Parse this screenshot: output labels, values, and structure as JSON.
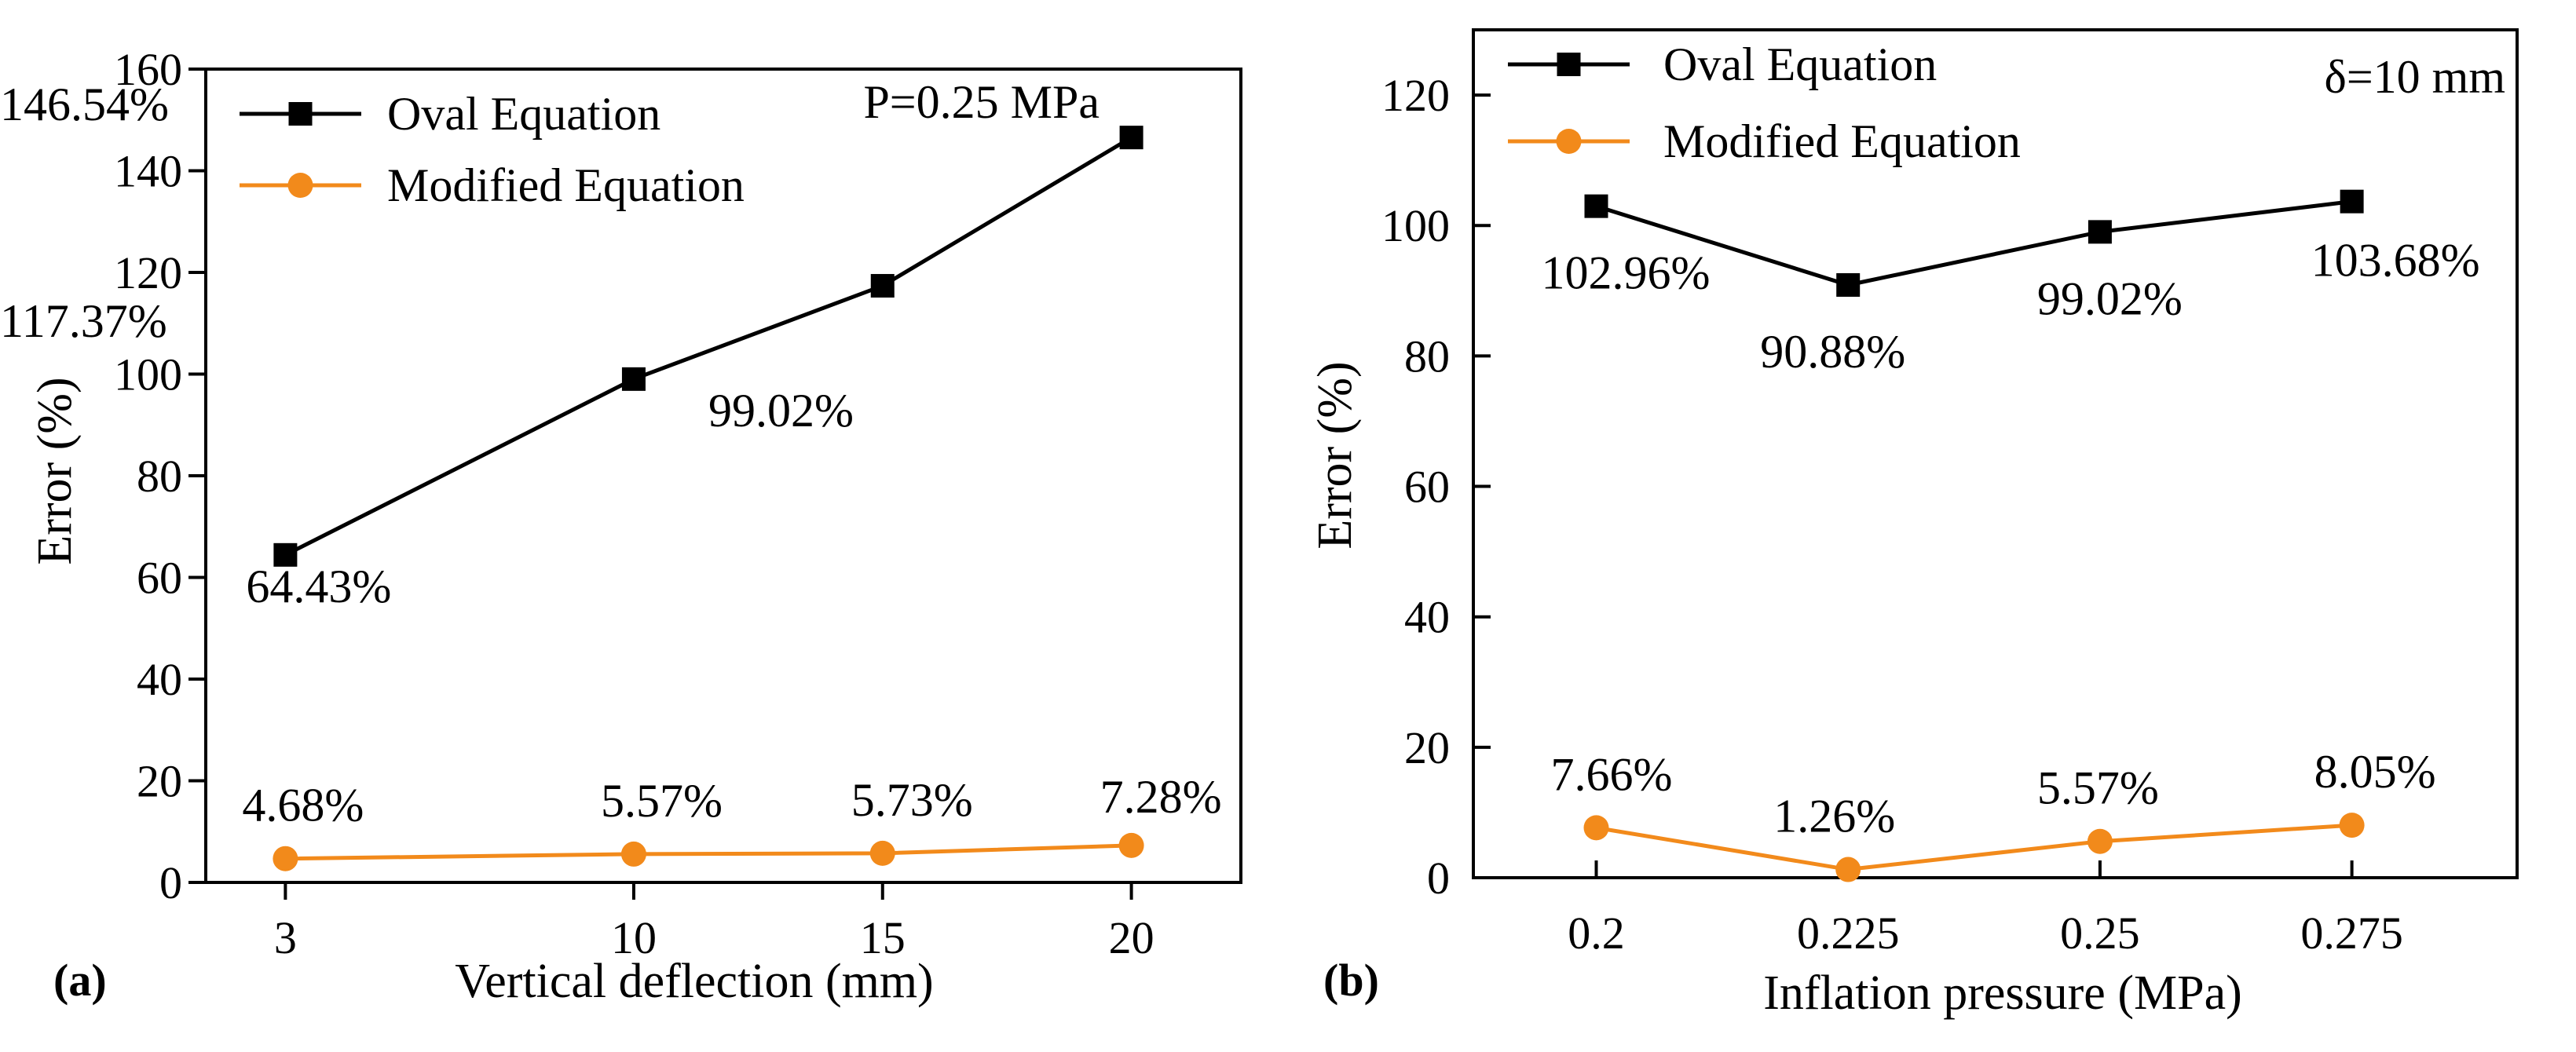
{
  "chart_data": [
    {
      "type": "line",
      "panel_label": "(a)",
      "xlabel": "Vertical deflection (mm)",
      "ylabel": "Error (%)",
      "annotation": "P=0.25 MPa",
      "categories": [
        "3",
        "10",
        "15",
        "20"
      ],
      "x": [
        3,
        10,
        15,
        20
      ],
      "xlim": [
        1.4,
        22.2
      ],
      "ylim": [
        0,
        160
      ],
      "yticks": [
        0,
        20,
        40,
        60,
        80,
        100,
        120,
        140,
        160
      ],
      "legend_position": "top-left",
      "series": [
        {
          "name": "Oval Equation",
          "color": "#000000",
          "marker": "square",
          "values": [
            64.43,
            99.02,
            117.37,
            146.54
          ],
          "labels": [
            "64.43%",
            "99.02%",
            "117.37%",
            "146.54%"
          ]
        },
        {
          "name": "Modified Equation",
          "color": "#F28A1B",
          "marker": "circle",
          "values": [
            4.68,
            5.57,
            5.73,
            7.28
          ],
          "labels": [
            "4.68%",
            "5.57%",
            "5.73%",
            "7.28%"
          ]
        }
      ]
    },
    {
      "type": "line",
      "panel_label": "(b)",
      "xlabel": "Inflation pressure (MPa)",
      "ylabel": "Error (%)",
      "annotation": "δ=10 mm",
      "categories": [
        "0.2",
        "0.225",
        "0.25",
        "0.275"
      ],
      "x": [
        0.2,
        0.225,
        0.25,
        0.275
      ],
      "xlim": [
        0.1878,
        0.2914
      ],
      "ylim": [
        0,
        130
      ],
      "yticks": [
        0,
        20,
        40,
        60,
        80,
        100,
        120
      ],
      "legend_position": "top-left",
      "series": [
        {
          "name": "Oval Equation",
          "color": "#000000",
          "marker": "square",
          "values": [
            102.96,
            90.88,
            99.02,
            103.68
          ],
          "labels": [
            "102.96%",
            "90.88%",
            "99.02%",
            "103.68%"
          ]
        },
        {
          "name": "Modified Equation",
          "color": "#F28A1B",
          "marker": "circle",
          "values": [
            7.66,
            1.26,
            5.57,
            8.05
          ],
          "labels": [
            "7.66%",
            "1.26%",
            "5.57%",
            "8.05%"
          ]
        }
      ]
    }
  ]
}
